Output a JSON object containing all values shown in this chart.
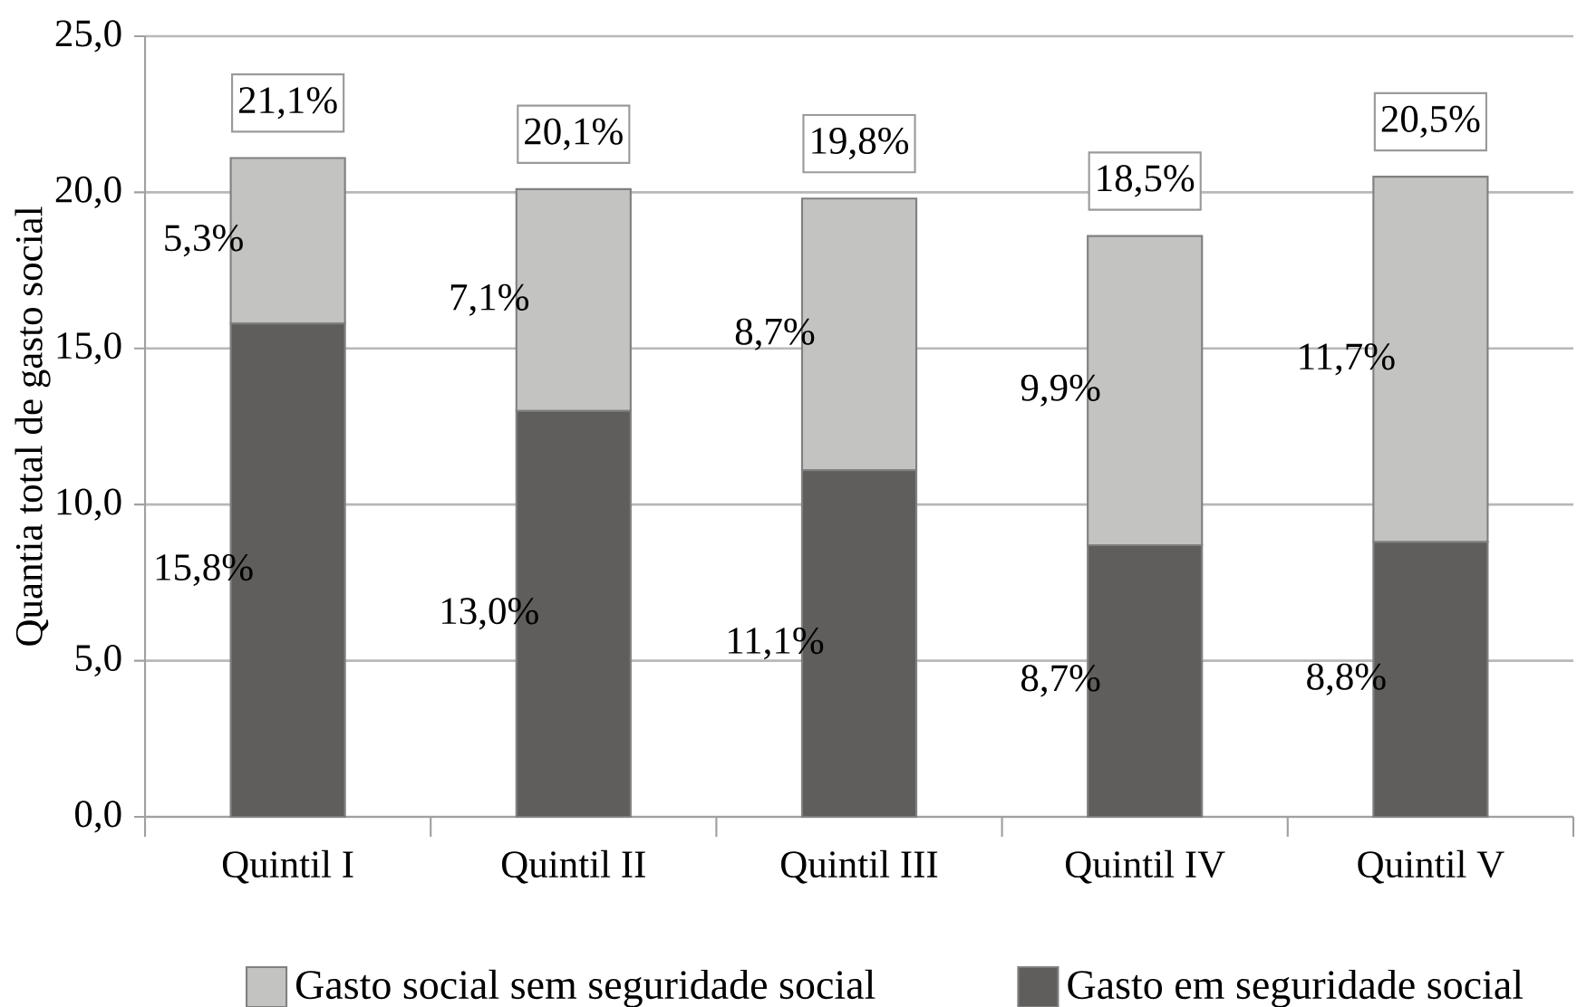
{
  "chart_data": {
    "type": "bar",
    "stacked": true,
    "ylabel": "Quantia total de gasto social",
    "categories": [
      "Quintil I",
      "Quintil II",
      "Quintil III",
      "Quintil IV",
      "Quintil V"
    ],
    "series": [
      {
        "name": "Gasto em seguridade social",
        "color": "#5f5e5c",
        "values": [
          15.8,
          13.0,
          11.1,
          8.7,
          8.8
        ],
        "value_labels": [
          "15,8%",
          "13,0%",
          "11,1%",
          "8,7%",
          "8,8%"
        ]
      },
      {
        "name": "Gasto social sem seguridade social",
        "color": "#c3c3c2",
        "values": [
          5.3,
          7.1,
          8.7,
          9.9,
          11.7
        ],
        "value_labels": [
          "5,3%",
          "7,1%",
          "8,7%",
          "9,9%",
          "11,7%"
        ]
      }
    ],
    "totals": [
      "21,1%",
      "20,1%",
      "19,8%",
      "18,5%",
      "20,5%"
    ],
    "ylim": [
      0,
      25
    ],
    "yticks": [
      {
        "value": 0,
        "label": "0,0"
      },
      {
        "value": 5,
        "label": "5,0"
      },
      {
        "value": 10,
        "label": "10,0"
      },
      {
        "value": 15,
        "label": "15,0"
      },
      {
        "value": 20,
        "label": "20,0"
      },
      {
        "value": 25,
        "label": "25,0"
      }
    ],
    "grid": "y",
    "legend": "bottom"
  }
}
